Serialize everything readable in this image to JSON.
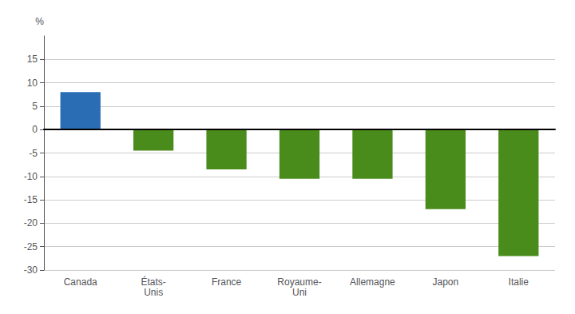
{
  "chart_data": {
    "type": "bar",
    "categories": [
      "Canada",
      "États-\nUnis",
      "France",
      "Royaume-\nUni",
      "Allemagne",
      "Japon",
      "Italie"
    ],
    "values": [
      8.0,
      -4.5,
      -8.5,
      -10.5,
      -10.5,
      -17.0,
      -27.0
    ],
    "colors": [
      "#2a6db5",
      "#4a8c1c",
      "#4a8c1c",
      "#4a8c1c",
      "#4a8c1c",
      "#4a8c1c",
      "#4a8c1c"
    ],
    "y_label": "%",
    "ylim": [
      -30,
      20
    ],
    "yticks": [
      -30,
      -25,
      -20,
      -15,
      -10,
      -5,
      0,
      5,
      10,
      15
    ],
    "grid": true
  }
}
